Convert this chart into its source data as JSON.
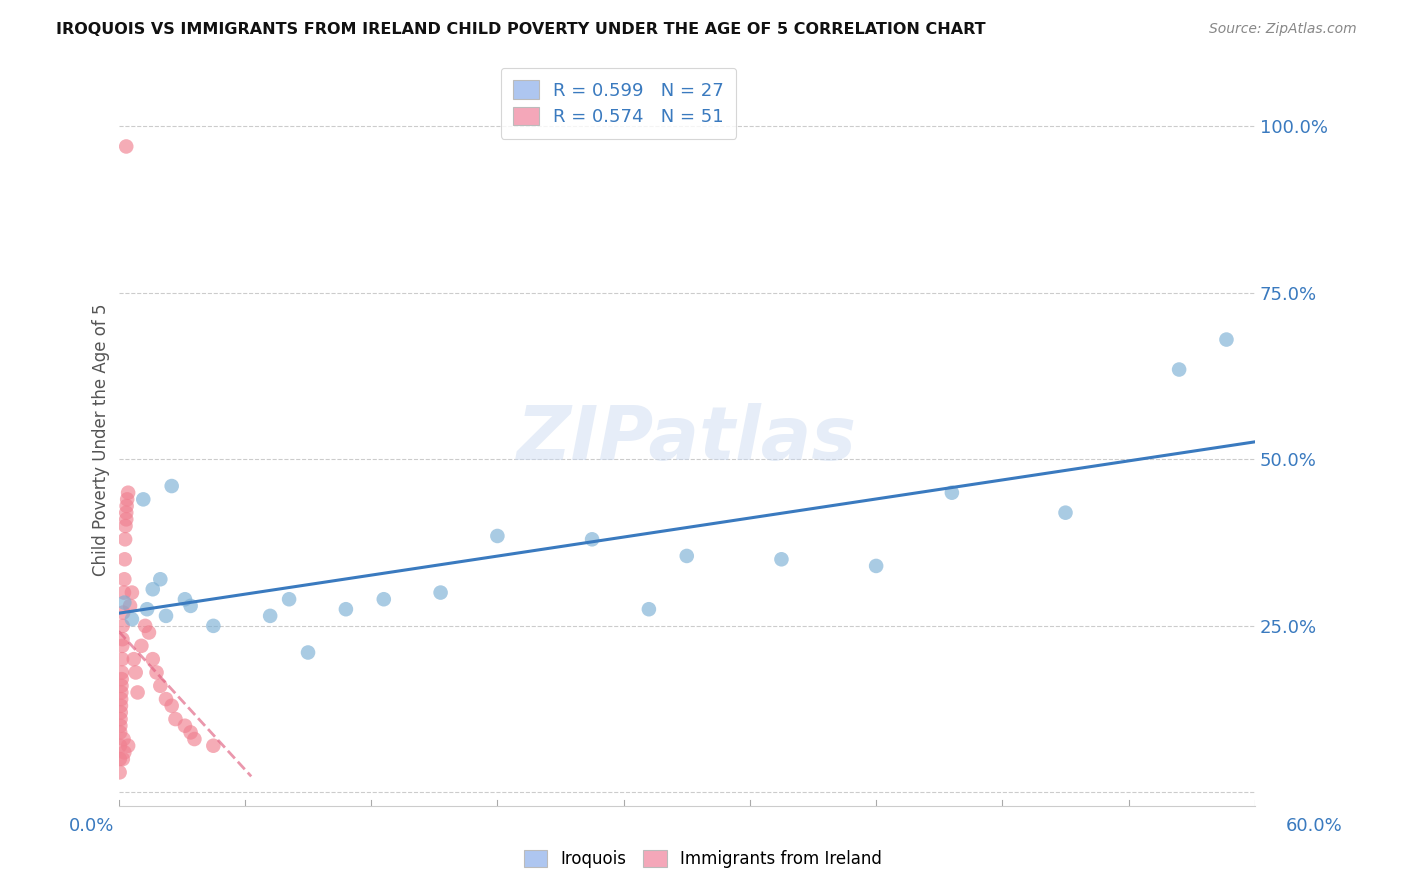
{
  "title": "IROQUOIS VS IMMIGRANTS FROM IRELAND CHILD POVERTY UNDER THE AGE OF 5 CORRELATION CHART",
  "source": "Source: ZipAtlas.com",
  "ylabel": "Child Poverty Under the Age of 5",
  "xlim": [
    0.0,
    0.6
  ],
  "ylim": [
    -0.02,
    1.08
  ],
  "yticks": [
    0.0,
    0.25,
    0.5,
    0.75,
    1.0
  ],
  "ytick_labels": [
    "",
    "25.0%",
    "50.0%",
    "75.0%",
    "100.0%"
  ],
  "legend_label1": "R = 0.599   N = 27",
  "legend_label2": "R = 0.574   N = 51",
  "legend_color1": "#aec6f0",
  "legend_color2": "#f4a7b9",
  "watermark": "ZIPatlas",
  "iroquois_color": "#7bafd4",
  "ireland_color": "#f08090",
  "iroquois_line_color": "#3a7abf",
  "ireland_line_color": "#e06080",
  "iroquois_x": [
    0.003,
    0.007,
    0.013,
    0.015,
    0.018,
    0.022,
    0.025,
    0.028,
    0.035,
    0.038,
    0.05,
    0.08,
    0.09,
    0.1,
    0.12,
    0.14,
    0.17,
    0.2,
    0.25,
    0.28,
    0.3,
    0.35,
    0.4,
    0.44,
    0.5,
    0.56,
    0.585
  ],
  "iroquois_y": [
    0.285,
    0.26,
    0.44,
    0.275,
    0.305,
    0.32,
    0.265,
    0.46,
    0.29,
    0.28,
    0.25,
    0.265,
    0.29,
    0.21,
    0.275,
    0.29,
    0.3,
    0.385,
    0.38,
    0.275,
    0.355,
    0.35,
    0.34,
    0.45,
    0.42,
    0.635,
    0.68
  ],
  "ireland_x": [
    0.004,
    0.0005,
    0.0006,
    0.0007,
    0.0008,
    0.0009,
    0.001,
    0.0011,
    0.0012,
    0.0013,
    0.0014,
    0.0015,
    0.0016,
    0.0017,
    0.0018,
    0.0019,
    0.002,
    0.0021,
    0.0022,
    0.0024,
    0.0026,
    0.0028,
    0.003,
    0.003,
    0.0032,
    0.0034,
    0.0036,
    0.004,
    0.0042,
    0.0045,
    0.005,
    0.005,
    0.006,
    0.007,
    0.008,
    0.009,
    0.01,
    0.012,
    0.014,
    0.016,
    0.018,
    0.02,
    0.022,
    0.025,
    0.028,
    0.03,
    0.035,
    0.038,
    0.04,
    0.05,
    0.004
  ],
  "ireland_y": [
    0.97,
    0.03,
    0.05,
    0.07,
    0.09,
    0.1,
    0.11,
    0.12,
    0.13,
    0.14,
    0.15,
    0.16,
    0.17,
    0.18,
    0.2,
    0.22,
    0.23,
    0.25,
    0.05,
    0.27,
    0.08,
    0.3,
    0.32,
    0.06,
    0.35,
    0.38,
    0.4,
    0.41,
    0.43,
    0.44,
    0.45,
    0.07,
    0.28,
    0.3,
    0.2,
    0.18,
    0.15,
    0.22,
    0.25,
    0.24,
    0.2,
    0.18,
    0.16,
    0.14,
    0.13,
    0.11,
    0.1,
    0.09,
    0.08,
    0.07,
    0.42
  ]
}
